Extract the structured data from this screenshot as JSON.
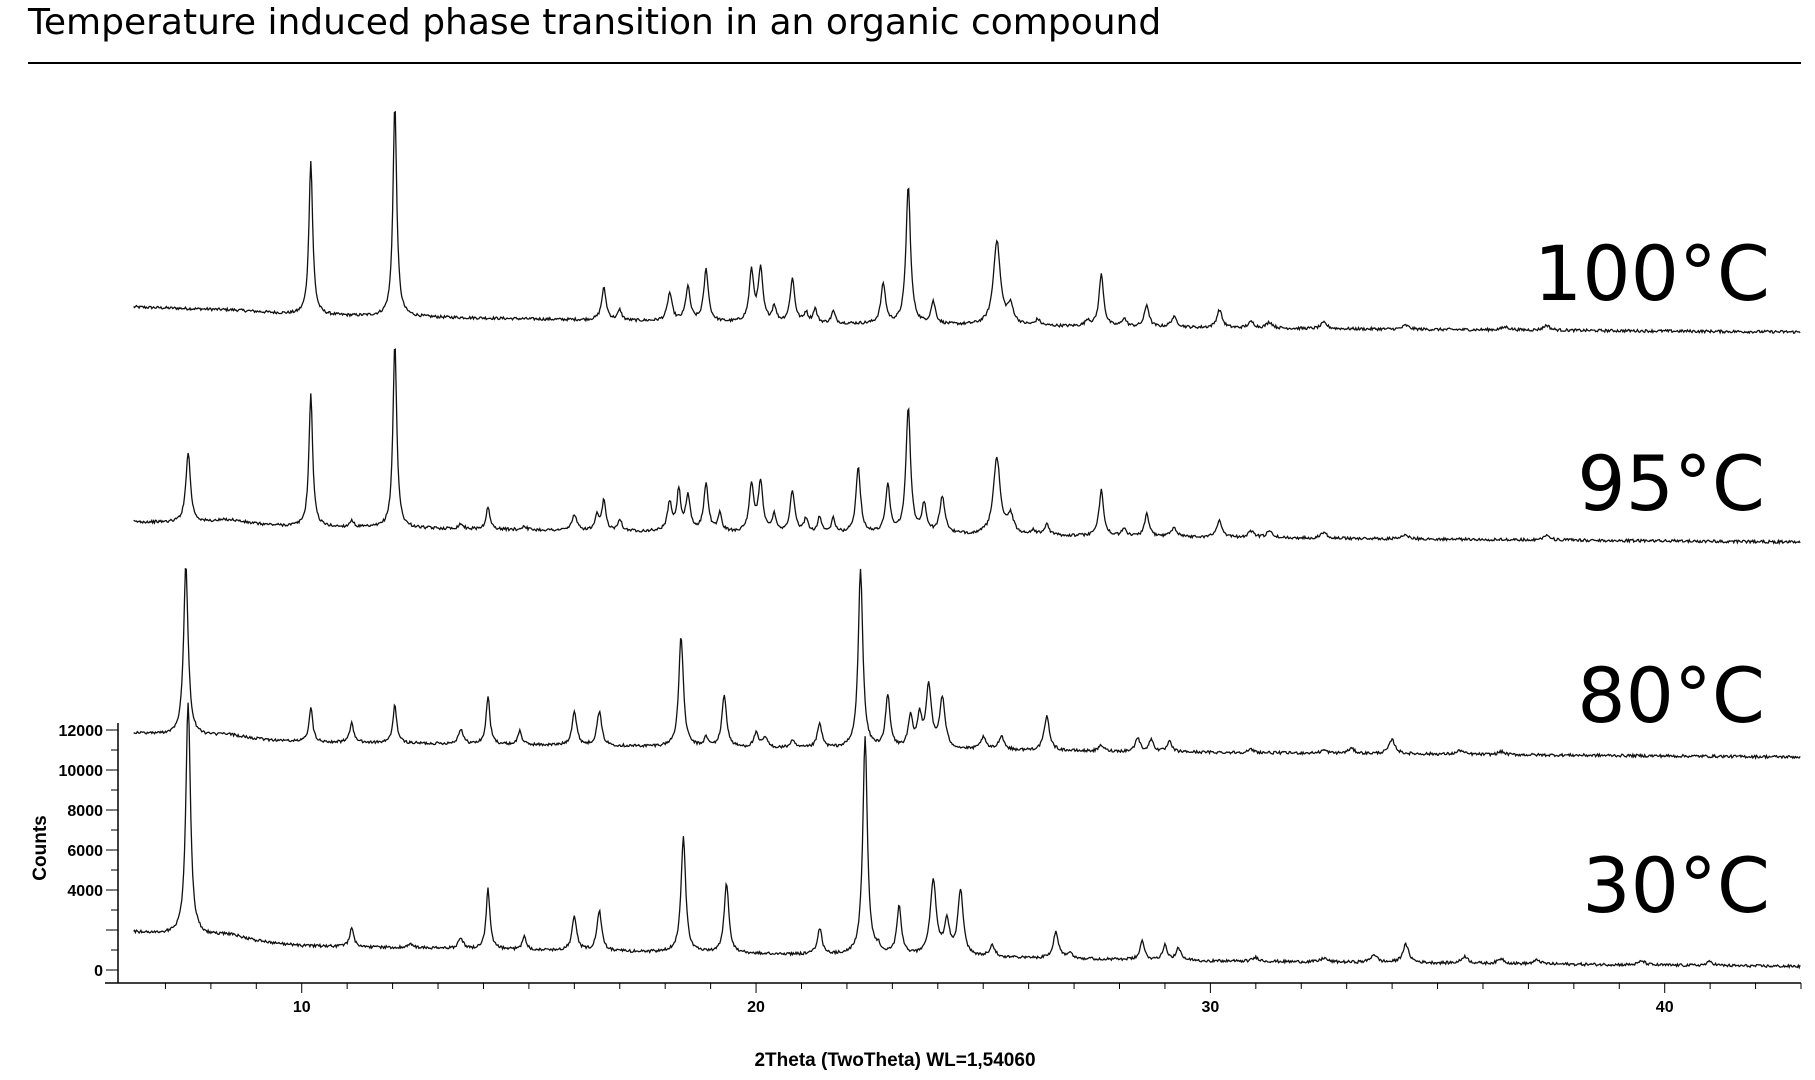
{
  "chart_data": {
    "type": "line",
    "title": "Temperature induced phase transition in an organic compound",
    "xlabel": "2Theta (TwoTheta) WL=1,54060",
    "ylabel": "Counts",
    "xlim": [
      6,
      43
    ],
    "ylim": [
      0,
      12000
    ],
    "x_ticks": [
      "10",
      "20",
      "30",
      "40"
    ],
    "y_ticks": [
      "0",
      "4000",
      "6000",
      "8000",
      "10000",
      "12000"
    ],
    "grid": false,
    "legend": "none",
    "series": [
      {
        "name": "100°C",
        "background": [
          [
            6.3,
            1400
          ],
          [
            8.5,
            1250
          ],
          [
            10,
            1000
          ],
          [
            20,
            600
          ],
          [
            30,
            350
          ],
          [
            43,
            150
          ]
        ],
        "peaks": [
          [
            10.2,
            7700,
            0.05
          ],
          [
            12.05,
            10600,
            0.05
          ],
          [
            16.65,
            1600,
            0.06
          ],
          [
            17.0,
            500,
            0.05
          ],
          [
            18.1,
            1400,
            0.06
          ],
          [
            18.5,
            1700,
            0.06
          ],
          [
            18.9,
            2600,
            0.06
          ],
          [
            19.9,
            2500,
            0.06
          ],
          [
            20.1,
            2600,
            0.06
          ],
          [
            20.4,
            800,
            0.05
          ],
          [
            20.8,
            2200,
            0.06
          ],
          [
            21.1,
            500,
            0.05
          ],
          [
            21.3,
            700,
            0.05
          ],
          [
            21.7,
            600,
            0.05
          ],
          [
            22.8,
            2000,
            0.06
          ],
          [
            23.35,
            6900,
            0.06
          ],
          [
            23.9,
            1100,
            0.06
          ],
          [
            25.3,
            4200,
            0.09
          ],
          [
            25.6,
            900,
            0.08
          ],
          [
            26.2,
            300,
            0.06
          ],
          [
            27.3,
            300,
            0.06
          ],
          [
            27.6,
            2600,
            0.06
          ],
          [
            28.1,
            400,
            0.06
          ],
          [
            28.6,
            1100,
            0.06
          ],
          [
            29.2,
            500,
            0.08
          ],
          [
            30.2,
            900,
            0.07
          ],
          [
            30.9,
            300,
            0.08
          ],
          [
            31.3,
            300,
            0.08
          ],
          [
            32.5,
            300,
            0.08
          ],
          [
            34.3,
            200,
            0.08
          ],
          [
            36.5,
            150,
            0.1
          ],
          [
            37.4,
            250,
            0.08
          ]
        ]
      },
      {
        "name": "95°C",
        "background": [
          [
            6.3,
            1150
          ],
          [
            8.5,
            1050
          ],
          [
            10,
            900
          ],
          [
            20,
            600
          ],
          [
            30,
            380
          ],
          [
            43,
            150
          ]
        ],
        "peaks": [
          [
            7.5,
            3500,
            0.06
          ],
          [
            8.4,
            200,
            0.4
          ],
          [
            10.2,
            6600,
            0.05
          ],
          [
            11.1,
            350,
            0.05
          ],
          [
            12.05,
            9300,
            0.05
          ],
          [
            13.5,
            250,
            0.06
          ],
          [
            14.1,
            1100,
            0.05
          ],
          [
            14.9,
            200,
            0.05
          ],
          [
            16.0,
            800,
            0.06
          ],
          [
            16.5,
            700,
            0.05
          ],
          [
            16.65,
            1500,
            0.05
          ],
          [
            17.0,
            600,
            0.05
          ],
          [
            18.1,
            1400,
            0.06
          ],
          [
            18.3,
            2000,
            0.05
          ],
          [
            18.5,
            1700,
            0.06
          ],
          [
            18.9,
            2400,
            0.06
          ],
          [
            19.2,
            900,
            0.05
          ],
          [
            19.9,
            2300,
            0.06
          ],
          [
            20.1,
            2500,
            0.06
          ],
          [
            20.4,
            900,
            0.05
          ],
          [
            20.8,
            2100,
            0.06
          ],
          [
            21.1,
            700,
            0.05
          ],
          [
            21.4,
            800,
            0.05
          ],
          [
            21.7,
            700,
            0.05
          ],
          [
            22.25,
            3300,
            0.06
          ],
          [
            22.9,
            2400,
            0.06
          ],
          [
            23.35,
            6300,
            0.06
          ],
          [
            23.7,
            1400,
            0.06
          ],
          [
            24.1,
            1800,
            0.07
          ],
          [
            25.3,
            3800,
            0.09
          ],
          [
            25.6,
            900,
            0.08
          ],
          [
            26.1,
            250,
            0.06
          ],
          [
            26.4,
            550,
            0.06
          ],
          [
            27.6,
            2300,
            0.06
          ],
          [
            28.1,
            350,
            0.06
          ],
          [
            28.6,
            1100,
            0.06
          ],
          [
            29.2,
            450,
            0.08
          ],
          [
            30.2,
            850,
            0.07
          ],
          [
            30.9,
            300,
            0.08
          ],
          [
            31.3,
            300,
            0.08
          ],
          [
            32.5,
            300,
            0.08
          ],
          [
            34.3,
            200,
            0.08
          ],
          [
            37.4,
            250,
            0.08
          ]
        ]
      },
      {
        "name": "80°C",
        "background": [
          [
            6.3,
            1350
          ],
          [
            8.5,
            1050
          ],
          [
            10,
            900
          ],
          [
            20,
            600
          ],
          [
            30,
            380
          ],
          [
            43,
            150
          ]
        ],
        "peaks": [
          [
            7.45,
            8500,
            0.06
          ],
          [
            8.4,
            200,
            0.4
          ],
          [
            10.2,
            1700,
            0.05
          ],
          [
            11.1,
            1000,
            0.05
          ],
          [
            12.05,
            1900,
            0.05
          ],
          [
            13.5,
            750,
            0.06
          ],
          [
            14.1,
            2400,
            0.05
          ],
          [
            14.8,
            700,
            0.05
          ],
          [
            16.0,
            1700,
            0.06
          ],
          [
            16.55,
            1700,
            0.06
          ],
          [
            18.35,
            5500,
            0.06
          ],
          [
            18.9,
            450,
            0.05
          ],
          [
            19.3,
            2600,
            0.06
          ],
          [
            20.0,
            700,
            0.06
          ],
          [
            20.2,
            500,
            0.06
          ],
          [
            20.8,
            350,
            0.06
          ],
          [
            21.4,
            1200,
            0.06
          ],
          [
            22.3,
            8900,
            0.06
          ],
          [
            22.9,
            2600,
            0.06
          ],
          [
            23.4,
            1500,
            0.06
          ],
          [
            23.6,
            1500,
            0.06
          ],
          [
            23.8,
            3100,
            0.07
          ],
          [
            24.1,
            2500,
            0.07
          ],
          [
            25.0,
            600,
            0.07
          ],
          [
            25.4,
            700,
            0.07
          ],
          [
            26.4,
            1700,
            0.07
          ],
          [
            27.6,
            300,
            0.06
          ],
          [
            28.4,
            700,
            0.06
          ],
          [
            28.7,
            600,
            0.06
          ],
          [
            29.1,
            500,
            0.06
          ],
          [
            30.9,
            150,
            0.08
          ],
          [
            32.5,
            150,
            0.08
          ],
          [
            33.1,
            250,
            0.08
          ],
          [
            34.0,
            700,
            0.08
          ],
          [
            35.5,
            200,
            0.08
          ],
          [
            36.4,
            150,
            0.08
          ]
        ]
      },
      {
        "name": "30°C",
        "background": [
          [
            6.3,
            1900
          ],
          [
            8.5,
            1500
          ],
          [
            10,
            1200
          ],
          [
            20,
            800
          ],
          [
            30,
            450
          ],
          [
            43,
            180
          ]
        ],
        "peaks": [
          [
            7.5,
            11700,
            0.06
          ],
          [
            8.4,
            250,
            0.4
          ],
          [
            11.1,
            1000,
            0.05
          ],
          [
            12.4,
            200,
            0.06
          ],
          [
            13.5,
            550,
            0.06
          ],
          [
            14.1,
            3000,
            0.05
          ],
          [
            14.9,
            700,
            0.05
          ],
          [
            16.0,
            1700,
            0.06
          ],
          [
            16.55,
            2000,
            0.06
          ],
          [
            18.4,
            5800,
            0.06
          ],
          [
            19.35,
            3500,
            0.06
          ],
          [
            21.4,
            1300,
            0.06
          ],
          [
            22.4,
            10900,
            0.06
          ],
          [
            22.7,
            300,
            0.05
          ],
          [
            23.15,
            2400,
            0.06
          ],
          [
            23.9,
            3700,
            0.08
          ],
          [
            24.2,
            1600,
            0.07
          ],
          [
            24.5,
            3300,
            0.07
          ],
          [
            25.2,
            600,
            0.07
          ],
          [
            26.6,
            1300,
            0.07
          ],
          [
            26.9,
            300,
            0.07
          ],
          [
            28.5,
            900,
            0.06
          ],
          [
            29.0,
            750,
            0.06
          ],
          [
            29.3,
            600,
            0.06
          ],
          [
            31.0,
            200,
            0.08
          ],
          [
            32.5,
            200,
            0.08
          ],
          [
            33.6,
            400,
            0.08
          ],
          [
            34.3,
            900,
            0.08
          ],
          [
            35.6,
            350,
            0.08
          ],
          [
            36.4,
            250,
            0.08
          ],
          [
            37.2,
            200,
            0.08
          ],
          [
            39.5,
            200,
            0.08
          ],
          [
            41.0,
            200,
            0.08
          ]
        ]
      }
    ]
  }
}
